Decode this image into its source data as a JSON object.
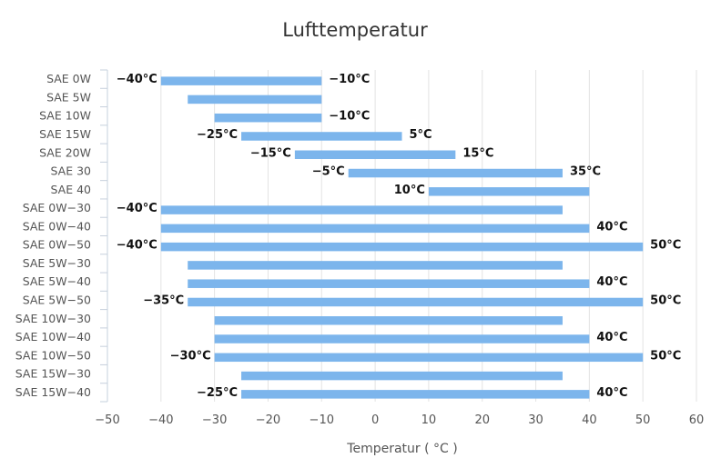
{
  "chart_data": {
    "type": "bar",
    "orientation": "horizontal",
    "range_bars": true,
    "title": "Lufttemperatur",
    "xlabel": "Temperatur ( °C )",
    "ylabel": "",
    "xlim": [
      -50,
      60
    ],
    "x_ticks": [
      -50,
      -40,
      -30,
      -20,
      -10,
      0,
      10,
      20,
      30,
      40,
      50,
      60
    ],
    "x_tick_labels": [
      "−50",
      "−40",
      "−30",
      "−20",
      "−10",
      "0",
      "10",
      "20",
      "30",
      "40",
      "50",
      "60"
    ],
    "grid": true,
    "legend": false,
    "bar_color": "#7cb5ec",
    "categories": [
      "SAE 0W",
      "SAE 5W",
      "SAE 10W",
      "SAE 15W",
      "SAE 20W",
      "SAE 30",
      "SAE 40",
      "SAE 0W−30",
      "SAE 0W−40",
      "SAE 0W−50",
      "SAE 5W−30",
      "SAE 5W−40",
      "SAE 5W−50",
      "SAE 10W−30",
      "SAE 10W−40",
      "SAE 10W−50",
      "SAE 15W−30",
      "SAE 15W−40"
    ],
    "low": [
      -40,
      -35,
      -30,
      -25,
      -15,
      -5,
      10,
      -40,
      -40,
      -40,
      -35,
      -35,
      -35,
      -30,
      -30,
      -30,
      -25,
      -25
    ],
    "high": [
      -10,
      -10,
      -10,
      5,
      15,
      35,
      40,
      35,
      40,
      50,
      35,
      40,
      50,
      35,
      40,
      50,
      35,
      40
    ],
    "low_labels": [
      "−40°C",
      "",
      "",
      "−25°C",
      "−15°C",
      "−5°C",
      "10°C",
      "−40°C",
      "",
      "−40°C",
      "",
      "",
      "−35°C",
      "",
      "",
      "−30°C",
      "",
      "−25°C"
    ],
    "high_labels": [
      "−10°C",
      "",
      "−10°C",
      "5°C",
      "15°C",
      "35°C",
      "",
      "",
      "40°C",
      "50°C",
      "",
      "40°C",
      "50°C",
      "",
      "40°C",
      "50°C",
      "",
      "40°C"
    ]
  }
}
